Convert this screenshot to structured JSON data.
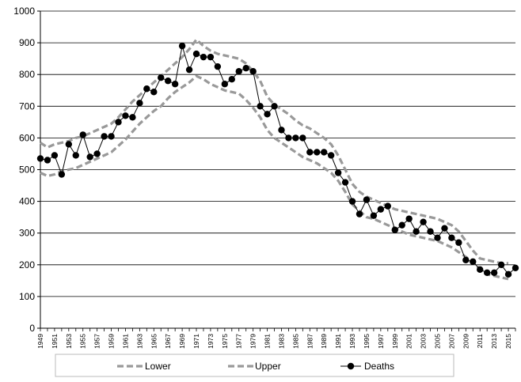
{
  "chart_data": {
    "type": "line",
    "title": "",
    "xlabel": "",
    "ylabel": "",
    "ylim": [
      0,
      1000
    ],
    "yticks": [
      "0",
      "100",
      "200",
      "300",
      "400",
      "500",
      "600",
      "700",
      "800",
      "900",
      "1000"
    ],
    "xlim": [
      1949,
      2016
    ],
    "xtick_labels": [
      "1949",
      "1951",
      "1953",
      "1955",
      "1957",
      "1959",
      "1961",
      "1963",
      "1965",
      "1967",
      "1969",
      "1971",
      "1973",
      "1975",
      "1977",
      "1979",
      "1981",
      "1983",
      "1985",
      "1987",
      "1989",
      "1991",
      "1993",
      "1995",
      "1997",
      "1999",
      "2001",
      "2003",
      "2005",
      "2007",
      "2009",
      "2011",
      "2013",
      "2015"
    ],
    "grid": "horizontal",
    "legend_position": "bottom",
    "colors": {
      "band": "#999999",
      "deaths": "#000000",
      "grid": "#000000"
    },
    "x": [
      1949,
      1950,
      1951,
      1952,
      1953,
      1954,
      1955,
      1956,
      1957,
      1958,
      1959,
      1960,
      1961,
      1962,
      1963,
      1964,
      1965,
      1966,
      1967,
      1968,
      1969,
      1970,
      1971,
      1972,
      1973,
      1974,
      1975,
      1976,
      1977,
      1978,
      1979,
      1980,
      1981,
      1982,
      1983,
      1984,
      1985,
      1986,
      1987,
      1988,
      1989,
      1990,
      1991,
      1992,
      1993,
      1994,
      1995,
      1996,
      1997,
      1998,
      1999,
      2000,
      2001,
      2002,
      2003,
      2004,
      2005,
      2006,
      2007,
      2008,
      2009,
      2010,
      2011,
      2012,
      2013,
      2014,
      2015,
      2016
    ],
    "series": [
      {
        "name": "Lower",
        "style": "dashed",
        "values": [
          490,
          480,
          485,
          495,
          500,
          505,
          515,
          525,
          535,
          545,
          555,
          575,
          595,
          620,
          645,
          665,
          685,
          700,
          725,
          745,
          760,
          775,
          795,
          785,
          770,
          760,
          750,
          745,
          740,
          720,
          695,
          665,
          625,
          600,
          585,
          570,
          555,
          540,
          530,
          520,
          505,
          490,
          465,
          430,
          390,
          370,
          350,
          345,
          335,
          325,
          315,
          305,
          295,
          290,
          285,
          280,
          275,
          265,
          255,
          240,
          225,
          210,
          185,
          170,
          165,
          160,
          155,
          null
        ],
        "end_index": 66
      },
      {
        "name": "Upper",
        "style": "dashed",
        "values": [
          585,
          570,
          580,
          585,
          590,
          600,
          605,
          615,
          625,
          635,
          645,
          665,
          690,
          715,
          735,
          755,
          775,
          795,
          815,
          835,
          855,
          880,
          910,
          890,
          875,
          865,
          860,
          855,
          850,
          835,
          810,
          780,
          730,
          705,
          690,
          675,
          655,
          640,
          630,
          615,
          600,
          580,
          545,
          500,
          455,
          430,
          415,
          405,
          395,
          385,
          375,
          370,
          365,
          360,
          355,
          350,
          345,
          335,
          325,
          305,
          275,
          245,
          220,
          215,
          210,
          205,
          205,
          null
        ],
        "end_index": 66
      },
      {
        "name": "Deaths",
        "style": "solid-markers",
        "values": [
          535,
          530,
          545,
          485,
          580,
          545,
          610,
          540,
          550,
          605,
          605,
          650,
          670,
          665,
          710,
          755,
          745,
          790,
          780,
          770,
          890,
          815,
          865,
          855,
          855,
          825,
          770,
          785,
          810,
          820,
          810,
          700,
          675,
          700,
          625,
          600,
          600,
          600,
          555,
          555,
          555,
          545,
          490,
          460,
          400,
          360,
          405,
          355,
          375,
          385,
          310,
          325,
          345,
          305,
          335,
          305,
          285,
          315,
          285,
          270,
          215,
          210,
          185,
          175,
          175,
          200,
          170,
          190
        ],
        "end_index": 67
      }
    ]
  }
}
